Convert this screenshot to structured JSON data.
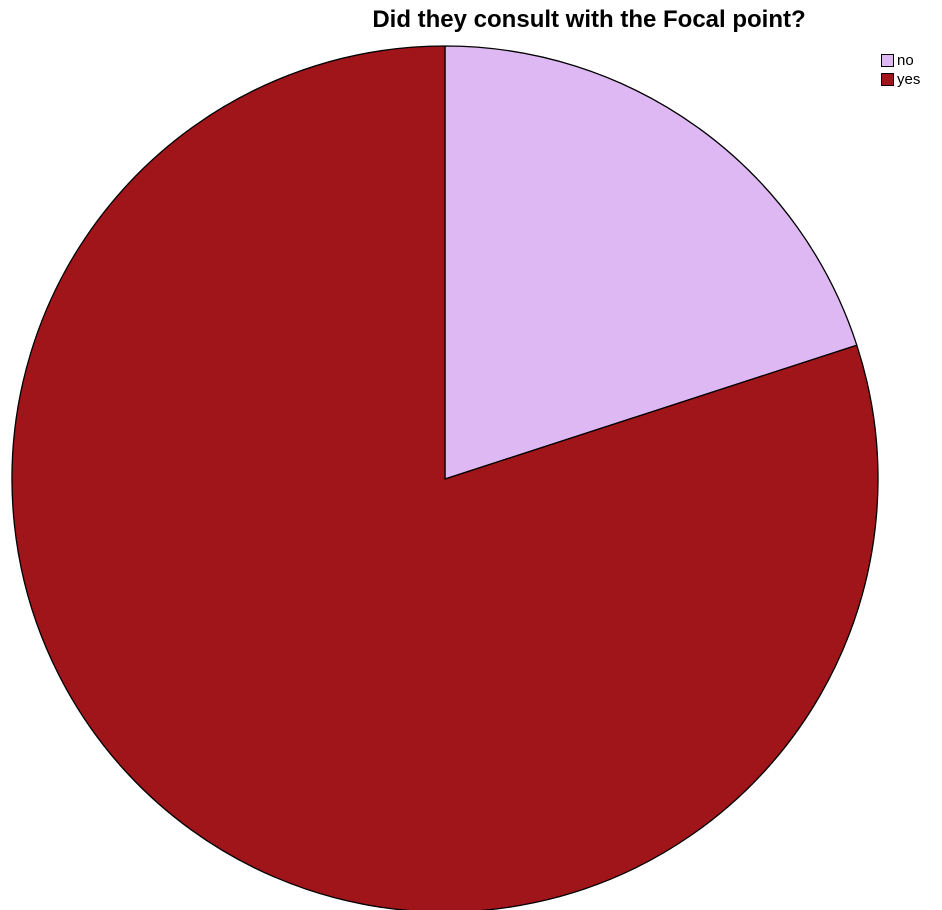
{
  "chart_data": {
    "type": "pie",
    "title": "Did they consult with the Focal point?",
    "slices": [
      {
        "label": "no",
        "value": 20,
        "color": "#DDB8F2"
      },
      {
        "label": "yes",
        "value": 80,
        "color": "#A0151A"
      }
    ],
    "legend": {
      "placement": "top-right",
      "entries": [
        "no",
        "yes"
      ]
    }
  }
}
